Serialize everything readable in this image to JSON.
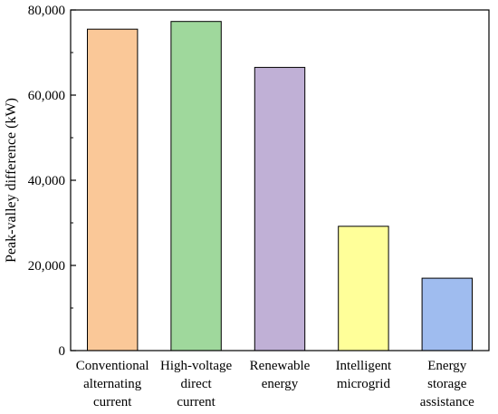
{
  "chart_data": {
    "type": "bar",
    "title": "",
    "xlabel": "",
    "ylabel": "Peak-valley difference (kW)",
    "ylim": [
      0,
      80000
    ],
    "yticks": [
      0,
      20000,
      40000,
      60000,
      80000
    ],
    "ytick_labels": [
      "0",
      "20,000",
      "40,000",
      "60,000",
      "80,000"
    ],
    "grid": false,
    "categories": [
      [
        "Conventional",
        "alternating",
        "current"
      ],
      [
        "High-voltage",
        "direct",
        "current"
      ],
      [
        "Renewable",
        "energy"
      ],
      [
        "Intelligent",
        "microgrid"
      ],
      [
        "Energy",
        "storage",
        "assistance"
      ]
    ],
    "values": [
      75500,
      77300,
      66500,
      29200,
      17000
    ],
    "colors": [
      "#fac898",
      "#9fd89c",
      "#c0b0d6",
      "#ffff99",
      "#9fbcef"
    ]
  }
}
